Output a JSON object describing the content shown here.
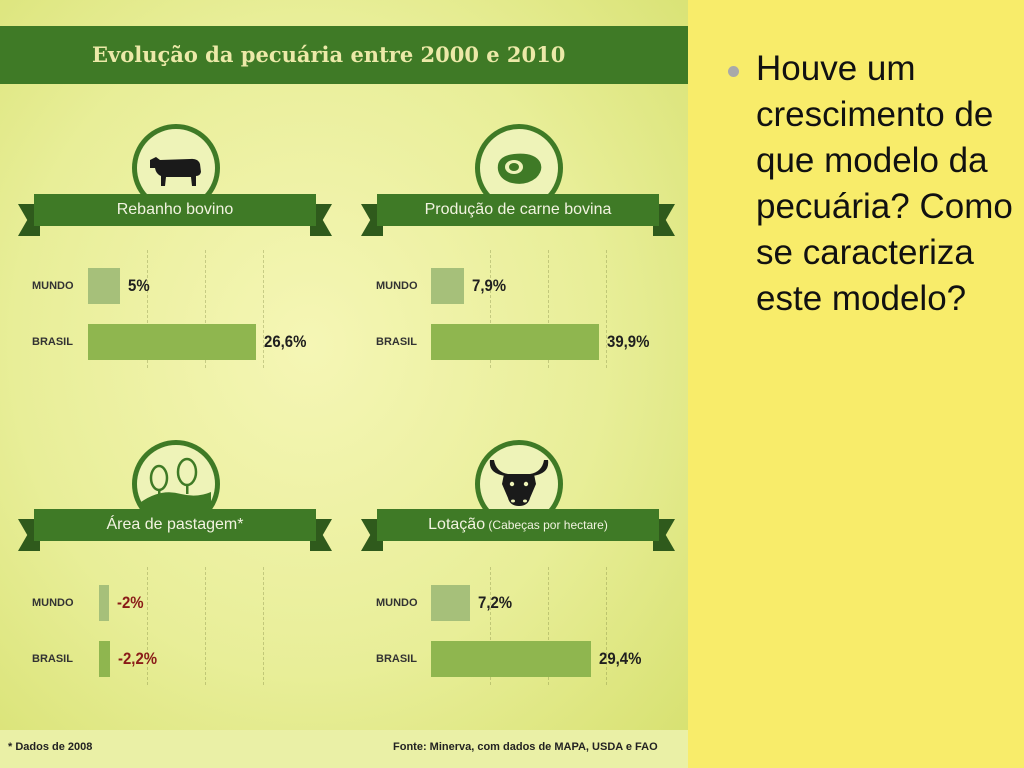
{
  "infographic": {
    "title": "Evolução da pecuária entre 2000 e 2010",
    "footnote": "* Dados de 2008",
    "source": "Fonte: Minerva, com dados de MAPA, USDA e FAO"
  },
  "row_labels": {
    "mundo": "MUNDO",
    "brasil": "BRASIL"
  },
  "bullet": {
    "text": "Houve um crescimento de que modelo da pecuária? Como se caracteriza este modelo?"
  },
  "colors": {
    "ribbon": "#3f7a26",
    "bar_mundo": "#a6c07a",
    "bar_brasil": "#8fb64f",
    "negative": "#8a1c18",
    "slide_bg": "#f8ec6a"
  },
  "chart_data": [
    {
      "type": "bar",
      "title": "Rebanho bovino",
      "icon": "cow-icon",
      "categories": [
        "MUNDO",
        "BRASIL"
      ],
      "values": [
        5,
        26.6
      ],
      "value_labels": [
        "5%",
        "26,6%"
      ],
      "unit": "%"
    },
    {
      "type": "bar",
      "title": "Produção de carne bovina",
      "icon": "meat-icon",
      "categories": [
        "MUNDO",
        "BRASIL"
      ],
      "values": [
        7.9,
        39.9
      ],
      "value_labels": [
        "7,9%",
        "39,9%"
      ],
      "unit": "%"
    },
    {
      "type": "bar",
      "title": "Área de pastagem*",
      "icon": "trees-icon",
      "categories": [
        "MUNDO",
        "BRASIL"
      ],
      "values": [
        -2,
        -2.2
      ],
      "value_labels": [
        "-2%",
        "-2,2%"
      ],
      "unit": "%"
    },
    {
      "type": "bar",
      "title": "Lotação",
      "subtitle": "(Cabeças por hectare)",
      "icon": "bull-head-icon",
      "categories": [
        "MUNDO",
        "BRASIL"
      ],
      "values": [
        7.2,
        29.4
      ],
      "value_labels": [
        "7,2%",
        "29,4%"
      ],
      "unit": "%"
    }
  ]
}
